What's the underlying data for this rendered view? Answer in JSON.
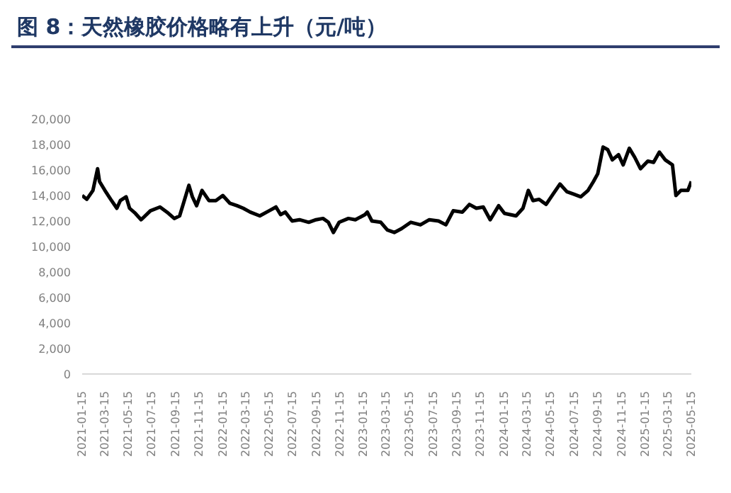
{
  "chart_data": {
    "type": "line",
    "title": "图 8：天然橡胶价格略有上升（元/吨）",
    "x": [
      "2021-01-15",
      "2021-01-27",
      "2021-02-12",
      "2021-02-24",
      "2021-03-01",
      "2021-03-15",
      "2021-03-30",
      "2021-04-15",
      "2021-04-24",
      "2021-05-09",
      "2021-05-18",
      "2021-06-02",
      "2021-06-17",
      "2021-07-11",
      "2021-08-05",
      "2021-08-23",
      "2021-09-11",
      "2021-09-25",
      "2021-10-07",
      "2021-10-19",
      "2021-10-28",
      "2021-11-08",
      "2021-11-22",
      "2021-12-10",
      "2021-12-28",
      "2022-01-15",
      "2022-02-02",
      "2022-02-21",
      "2022-03-09",
      "2022-03-27",
      "2022-04-21",
      "2022-05-15",
      "2022-06-02",
      "2022-06-14",
      "2022-06-26",
      "2022-07-14",
      "2022-08-02",
      "2022-08-26",
      "2022-09-14",
      "2022-10-02",
      "2022-10-16",
      "2022-10-29",
      "2022-11-13",
      "2022-12-07",
      "2022-12-25",
      "2023-01-19",
      "2023-01-25",
      "2023-02-06",
      "2023-03-01",
      "2023-03-18",
      "2023-04-05",
      "2023-04-24",
      "2023-05-18",
      "2023-06-12",
      "2023-07-05",
      "2023-07-29",
      "2023-08-17",
      "2023-09-05",
      "2023-09-29",
      "2023-10-17",
      "2023-11-04",
      "2023-11-22",
      "2023-12-10",
      "2024-01-01",
      "2024-01-16",
      "2024-02-15",
      "2024-03-04",
      "2024-03-18",
      "2024-03-30",
      "2024-04-15",
      "2024-05-03",
      "2024-05-21",
      "2024-06-08",
      "2024-06-26",
      "2024-07-14",
      "2024-08-01",
      "2024-08-20",
      "2024-09-03",
      "2024-09-14",
      "2024-09-28",
      "2024-10-10",
      "2024-10-22",
      "2024-11-07",
      "2024-11-19",
      "2024-12-05",
      "2024-12-19",
      "2025-01-03",
      "2025-01-22",
      "2025-02-06",
      "2025-02-21",
      "2025-03-08",
      "2025-03-27",
      "2025-04-05",
      "2025-04-18",
      "2025-05-06",
      "2025-05-15"
    ],
    "series": [
      {
        "color": "#000000",
        "values": [
          14000,
          13700,
          14400,
          16100,
          15100,
          14400,
          13700,
          13000,
          13600,
          13900,
          13000,
          12600,
          12100,
          12800,
          13100,
          12700,
          12200,
          12400,
          13600,
          14800,
          13900,
          13200,
          14400,
          13600,
          13600,
          14000,
          13400,
          13200,
          13000,
          12700,
          12400,
          12800,
          13100,
          12500,
          12700,
          12000,
          12100,
          11900,
          12100,
          12200,
          11900,
          11100,
          11900,
          12200,
          12100,
          12500,
          12700,
          12000,
          11900,
          11300,
          11100,
          11400,
          11900,
          11700,
          12100,
          12000,
          11700,
          12800,
          12700,
          13300,
          13000,
          13100,
          12100,
          13200,
          12600,
          12400,
          13000,
          14400,
          13600,
          13700,
          13300,
          14100,
          14900,
          14300,
          14100,
          13900,
          14400,
          15100,
          15700,
          17800,
          17600,
          16800,
          17200,
          16400,
          17700,
          17000,
          16100,
          16700,
          16600,
          17400,
          16800,
          16400,
          14000,
          14400,
          14400,
          15100
        ]
      }
    ],
    "xlim": [
      "2021-01-15",
      "2025-05-15"
    ],
    "xticks": [
      "2021-01-15",
      "2021-03-15",
      "2021-05-15",
      "2021-07-15",
      "2021-09-15",
      "2021-11-15",
      "2022-01-15",
      "2022-03-15",
      "2022-05-15",
      "2022-07-15",
      "2022-09-15",
      "2022-11-15",
      "2023-01-15",
      "2023-03-15",
      "2023-05-15",
      "2023-07-15",
      "2023-09-15",
      "2023-11-15",
      "2024-01-15",
      "2024-03-15",
      "2024-05-15",
      "2024-07-15",
      "2024-09-15",
      "2024-11-15",
      "2025-01-15",
      "2025-03-15",
      "2025-05-15"
    ],
    "ylim": [
      0,
      20000
    ],
    "yticks": [
      0,
      {
        "value": 2000,
        "label": "2,000"
      },
      {
        "value": 4000,
        "label": "4,000"
      },
      {
        "value": 6000,
        "label": "6,000"
      },
      {
        "value": 8000,
        "label": "8,000"
      },
      {
        "value": 10000,
        "label": "10,000"
      },
      {
        "value": 12000,
        "label": "12,000"
      },
      {
        "value": 14000,
        "label": "14,000"
      },
      {
        "value": 16000,
        "label": "16,000"
      },
      {
        "value": 18000,
        "label": "18,000"
      },
      {
        "value": 20000,
        "label": "20,000"
      }
    ],
    "grid": false,
    "legend": false,
    "marker": "none",
    "line_style": "solid"
  }
}
